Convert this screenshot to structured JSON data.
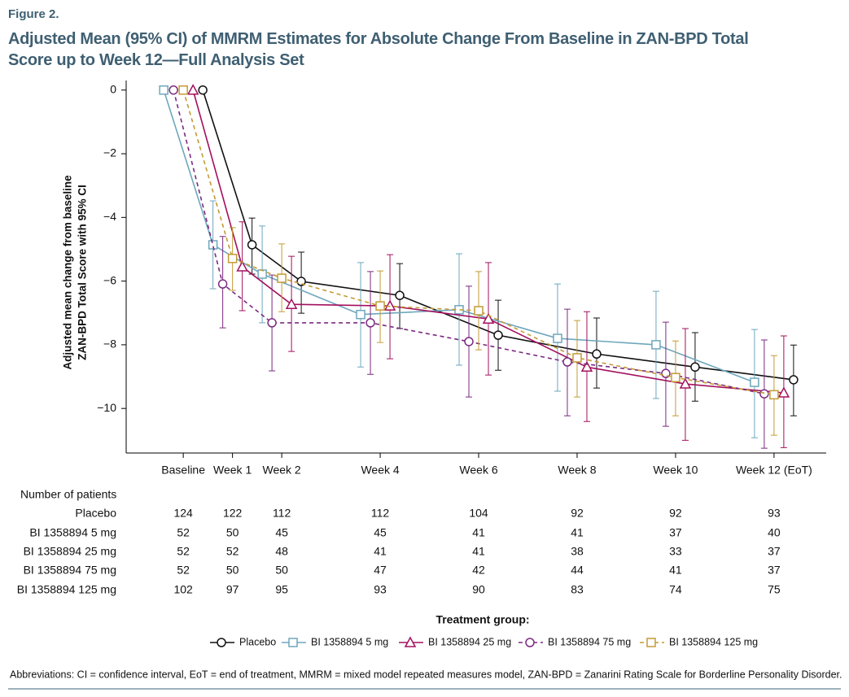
{
  "figure_label": "Figure 2.",
  "footnote": "Abbreviations: CI = confidence interval, EoT = end of treatment, MMRM = mixed model repeated measures model, ZAN-BPD = Zanarini Rating Scale for Borderline Personality Disorder.",
  "patients_table": {
    "title": "Number of patients",
    "rows": [
      {
        "label": "Placebo",
        "counts": [
          124,
          122,
          112,
          112,
          104,
          92,
          92,
          93
        ]
      },
      {
        "label": "BI 1358894 5 mg",
        "counts": [
          52,
          50,
          45,
          45,
          41,
          41,
          37,
          40
        ]
      },
      {
        "label": "BI 1358894 25 mg",
        "counts": [
          52,
          52,
          48,
          41,
          41,
          38,
          33,
          37
        ]
      },
      {
        "label": "BI 1358894 75 mg",
        "counts": [
          52,
          50,
          50,
          47,
          42,
          44,
          41,
          37
        ]
      },
      {
        "label": "BI 1358894 125 mg",
        "counts": [
          102,
          97,
          95,
          93,
          90,
          83,
          74,
          75
        ]
      }
    ]
  },
  "chart_data": {
    "type": "line",
    "title": [
      "Adjusted Mean (95% CI) of MMRM Estimates for Absolute Change From Baseline in ZAN-BPD Total",
      "Score up to Week 12—Full Analysis Set"
    ],
    "ylabel": [
      "Adjusted mean change from baseline",
      "ZAN-BPD Total Score with 95% CI"
    ],
    "legend_title": "Treatment group:",
    "x": [
      0,
      1,
      2,
      4,
      6,
      8,
      10,
      12
    ],
    "xlim": [
      -1.16,
      13.06
    ],
    "xticks": [
      {
        "value": 0,
        "label": "Baseline"
      },
      {
        "value": 1,
        "label": "Week 1"
      },
      {
        "value": 2,
        "label": "Week 2"
      },
      {
        "value": 4,
        "label": "Week 4"
      },
      {
        "value": 6,
        "label": "Week 6"
      },
      {
        "value": 8,
        "label": "Week 8"
      },
      {
        "value": 10,
        "label": "Week 10"
      },
      {
        "value": 12,
        "label": "Week 12 (EoT)"
      }
    ],
    "ylim": [
      -11.4,
      0.3
    ],
    "yticks": [
      {
        "value": 0,
        "label": "0"
      },
      {
        "value": -2,
        "label": "−2"
      },
      {
        "value": -4,
        "label": "−4"
      },
      {
        "value": -6,
        "label": "−6"
      },
      {
        "value": -8,
        "label": "−8"
      },
      {
        "value": -10,
        "label": "−10"
      }
    ],
    "series": [
      {
        "name": "Placebo",
        "color": "#111111",
        "marker": "circle",
        "dashed": false,
        "values": [
          0,
          -4.86,
          -6.01,
          -6.45,
          -7.7,
          -8.29,
          -8.7,
          -9.1
        ],
        "lower": [
          null,
          -5.78,
          -7.01,
          -7.49,
          -8.8,
          -9.36,
          -9.77,
          -10.23
        ],
        "upper": [
          null,
          -4.02,
          -5.09,
          -5.45,
          -6.6,
          -7.16,
          -7.62,
          -8.01
        ]
      },
      {
        "name": "BI 1358894 5 mg",
        "color": "#6ea7bd",
        "marker": "square",
        "dashed": false,
        "values": [
          0,
          -4.86,
          -5.78,
          -7.05,
          -6.9,
          -7.8,
          -8.0,
          -9.18
        ],
        "lower": [
          null,
          -6.24,
          -7.31,
          -8.7,
          -8.64,
          -9.46,
          -9.69,
          -10.92
        ],
        "upper": [
          null,
          -3.48,
          -4.27,
          -5.42,
          -5.14,
          -6.09,
          -6.32,
          -7.52
        ]
      },
      {
        "name": "BI 1358894 25 mg",
        "color": "#a3105e",
        "marker": "triangle",
        "dashed": false,
        "values": [
          0,
          -5.55,
          -6.73,
          -6.78,
          -7.19,
          -8.7,
          -9.23,
          -9.51
        ],
        "lower": [
          null,
          -6.93,
          -8.21,
          -8.44,
          -8.95,
          -10.41,
          -11.0,
          -11.23
        ],
        "upper": [
          null,
          -4.14,
          -5.22,
          -5.17,
          -5.42,
          -6.96,
          -7.49,
          -7.72
        ]
      },
      {
        "name": "BI 1358894 75 mg",
        "color": "#7b2a80",
        "marker": "circle",
        "dashed": true,
        "values": [
          0,
          -6.09,
          -7.31,
          -7.31,
          -7.9,
          -8.54,
          -8.9,
          -9.54
        ],
        "lower": [
          null,
          -7.47,
          -8.82,
          -8.93,
          -9.64,
          -10.23,
          -10.56,
          -11.25
        ],
        "upper": [
          null,
          -4.6,
          -5.81,
          -5.7,
          -6.16,
          -6.88,
          -7.29,
          -7.85
        ]
      },
      {
        "name": "BI 1358894 125 mg",
        "color": "#c49a35",
        "marker": "square",
        "dashed": true,
        "values": [
          0,
          -5.29,
          -5.91,
          -6.78,
          -6.93,
          -8.41,
          -9.03,
          -9.57
        ],
        "lower": [
          null,
          -6.29,
          -6.96,
          -7.93,
          -8.16,
          -9.64,
          -10.23,
          -10.84
        ],
        "upper": [
          null,
          -4.32,
          -4.83,
          -5.68,
          -5.7,
          -7.24,
          -7.88,
          -8.34
        ]
      }
    ]
  }
}
